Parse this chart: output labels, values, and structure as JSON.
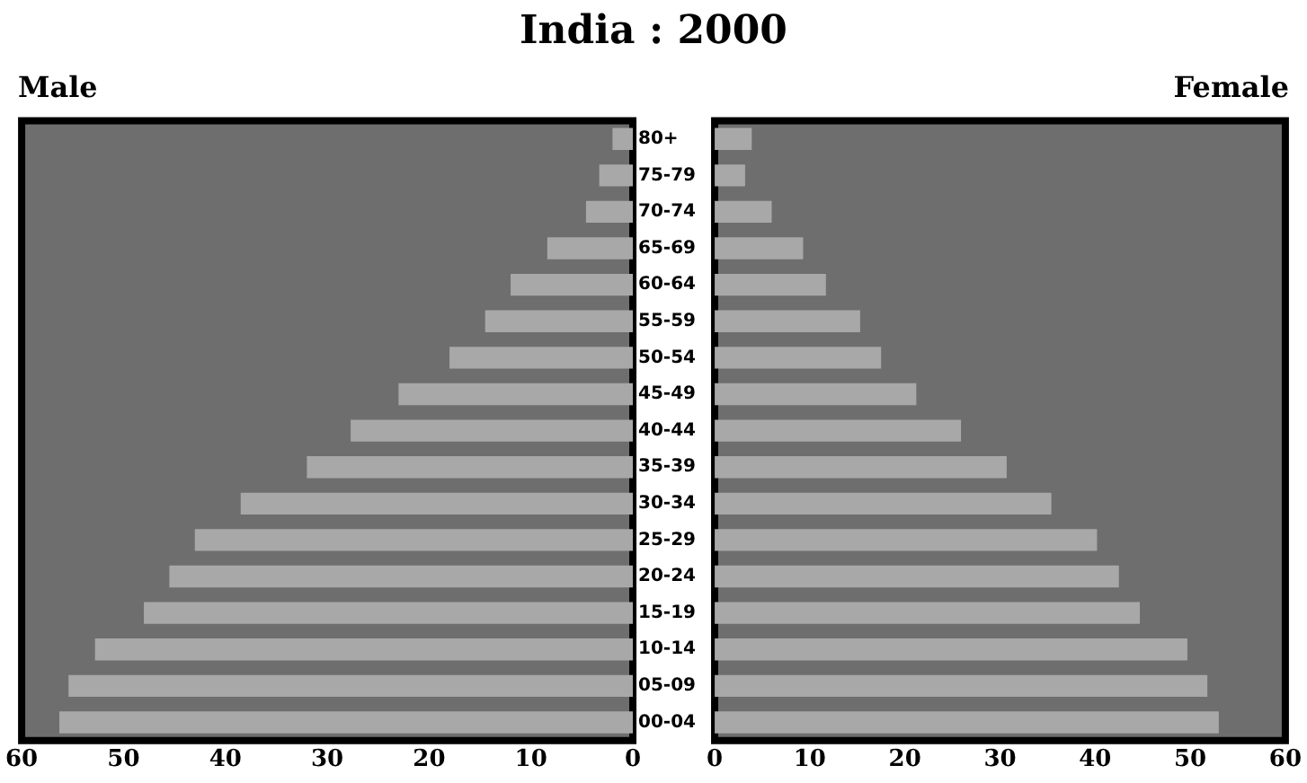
{
  "chart_data": [
    {
      "type": "bar",
      "orientation": "horizontal",
      "title": "India : 2000",
      "subtitle": "Male",
      "categories": [
        "80+",
        "75-79",
        "70-74",
        "65-69",
        "60-64",
        "55-59",
        "50-54",
        "45-49",
        "40-44",
        "35-39",
        "30-34",
        "25-29",
        "20-24",
        "15-19",
        "10-14",
        "05-09",
        "00-04"
      ],
      "values": [
        2,
        3.3,
        4.6,
        8.4,
        12,
        14.5,
        18,
        23,
        27.7,
        32,
        38.5,
        43,
        45.5,
        48,
        52.8,
        55.4,
        56.3
      ],
      "color": "#a8a8a8",
      "xlim": [
        60,
        0
      ],
      "xticks": [
        60,
        50,
        40,
        30,
        20,
        10,
        0
      ],
      "grid": false,
      "legend": false
    },
    {
      "type": "bar",
      "orientation": "horizontal",
      "subtitle": "Female",
      "categories": [
        null,
        null,
        null,
        null,
        null,
        null,
        null,
        null,
        null,
        null,
        null,
        null,
        null,
        null,
        null,
        null,
        null
      ],
      "values": [
        3.9,
        3.2,
        6,
        9.3,
        11.7,
        15.3,
        17.5,
        21.2,
        25.9,
        30.7,
        35.4,
        40.2,
        42.5,
        44.7,
        49.7,
        51.8,
        53
      ],
      "color": "#a8a8a8",
      "xlim": [
        0,
        60
      ],
      "xticks": [
        0,
        10,
        20,
        30,
        40,
        50,
        60
      ],
      "grid": false,
      "legend": false,
      "tick_labels": "x"
    }
  ]
}
